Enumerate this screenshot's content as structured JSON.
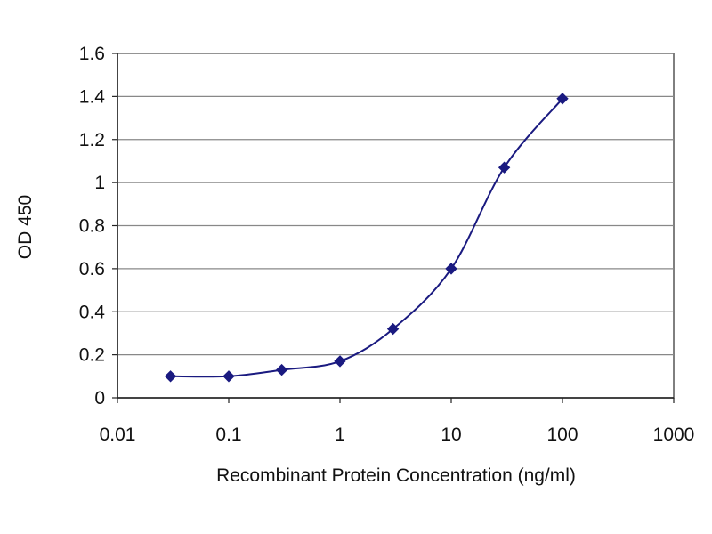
{
  "chart_data": {
    "type": "scatter",
    "title": "",
    "xlabel": "Recombinant Protein Concentration (ng/ml)",
    "ylabel": "OD 450",
    "xscale": "log",
    "xlim": [
      0.01,
      1000
    ],
    "ylim": [
      0,
      1.6
    ],
    "x_ticks": [
      0.01,
      0.1,
      1,
      10,
      100,
      1000
    ],
    "x_tick_labels": [
      "0.01",
      "0.1",
      "1",
      "10",
      "100",
      "1000"
    ],
    "y_ticks": [
      0,
      0.2,
      0.4,
      0.6,
      0.8,
      1,
      1.2,
      1.4,
      1.6
    ],
    "y_tick_labels": [
      "0",
      "0.2",
      "0.4",
      "0.6",
      "0.8",
      "1",
      "1.2",
      "1.4",
      "1.6"
    ],
    "grid": "horizontal",
    "legend": "none",
    "series": [
      {
        "x": [
          0.03,
          0.1,
          0.3,
          1,
          3,
          10,
          30,
          100
        ],
        "y": [
          0.1,
          0.1,
          0.13,
          0.17,
          0.32,
          0.6,
          1.07,
          1.39
        ],
        "line": "smooth",
        "marker": "diamond"
      }
    ],
    "colors": {
      "series": "#1a1a80",
      "grid": "#888888",
      "axis": "#222222"
    }
  }
}
